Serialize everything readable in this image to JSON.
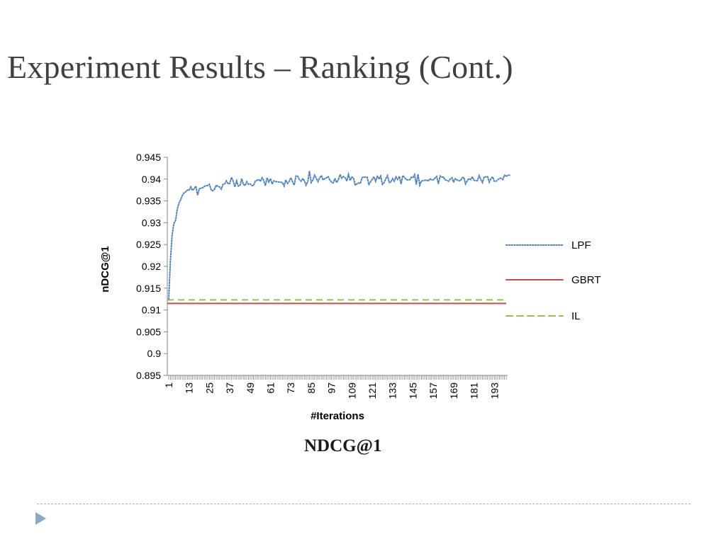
{
  "slide": {
    "title": "Experiment Results – Ranking (Cont.)"
  },
  "chart_data": {
    "type": "line",
    "title": "NDCG@1",
    "xlabel": "#Iterations",
    "ylabel": "nDCG@1",
    "ylim": [
      0.895,
      0.945
    ],
    "yticks": [
      "0.895",
      "0.9",
      "0.905",
      "0.91",
      "0.915",
      "0.92",
      "0.925",
      "0.93",
      "0.935",
      "0.94",
      "0.945"
    ],
    "xticks": [
      "1",
      "13",
      "25",
      "37",
      "49",
      "61",
      "73",
      "85",
      "97",
      "109",
      "121",
      "133",
      "145",
      "157",
      "169",
      "181",
      "193"
    ],
    "x_count": 200,
    "legend_position": "right",
    "grid": false,
    "series": [
      {
        "name": "LPF",
        "color": "#4f81bd",
        "style": "dotted",
        "values": [
          0.9125,
          0.9215,
          0.9272,
          0.9298,
          0.9305,
          0.9331,
          0.9345,
          0.9352,
          0.9362,
          0.9368,
          0.9371,
          0.9375,
          0.9374,
          0.9382,
          0.9374,
          0.9378,
          0.9384,
          0.9363,
          0.9378,
          0.9379,
          0.938,
          0.9383,
          0.9385,
          0.9385,
          0.9388,
          0.9375,
          0.9373,
          0.9377,
          0.9386,
          0.9383,
          0.9382,
          0.9377,
          0.9388,
          0.9389,
          0.9396,
          0.9389,
          0.939,
          0.9404,
          0.9395,
          0.9382,
          0.9396,
          0.9384,
          0.9385,
          0.9401,
          0.9388,
          0.9385,
          0.9394,
          0.9388,
          0.9389,
          0.9385,
          0.9385,
          0.9395,
          0.9397,
          0.9399,
          0.9395,
          0.9403,
          0.9397,
          0.9385,
          0.9403,
          0.9393,
          0.9401,
          0.9389,
          0.9396,
          0.9394,
          0.9394,
          0.9393,
          0.9393,
          0.9392,
          0.9384,
          0.9398,
          0.939,
          0.9394,
          0.9403,
          0.9394,
          0.9386,
          0.9407,
          0.9407,
          0.9399,
          0.9395,
          0.9401,
          0.9396,
          0.9386,
          0.9394,
          0.9418,
          0.9392,
          0.9398,
          0.9409,
          0.9402,
          0.9394,
          0.9403,
          0.9408,
          0.9398,
          0.9401,
          0.9403,
          0.9406,
          0.9398,
          0.9393,
          0.9391,
          0.9401,
          0.9392,
          0.9398,
          0.941,
          0.9402,
          0.9406,
          0.9403,
          0.9396,
          0.9411,
          0.9397,
          0.9405,
          0.9402,
          0.9386,
          0.9389,
          0.9391,
          0.939,
          0.9403,
          0.9405,
          0.9404,
          0.9404,
          0.9387,
          0.9394,
          0.9399,
          0.9405,
          0.9395,
          0.9407,
          0.94,
          0.9407,
          0.9388,
          0.9392,
          0.9401,
          0.9408,
          0.9392,
          0.9393,
          0.9401,
          0.9395,
          0.9405,
          0.9399,
          0.9406,
          0.9389,
          0.9408,
          0.9404,
          0.9399,
          0.9398,
          0.9398,
          0.9404,
          0.9403,
          0.941,
          0.9388,
          0.9411,
          0.9386,
          0.9396,
          0.9396,
          0.9397,
          0.9398,
          0.9395,
          0.9401,
          0.9398,
          0.9398,
          0.9402,
          0.9406,
          0.9389,
          0.9407,
          0.9404,
          0.9405,
          0.9398,
          0.9397,
          0.9395,
          0.94,
          0.9403,
          0.9393,
          0.9401,
          0.9398,
          0.9396,
          0.9396,
          0.9403,
          0.9404,
          0.9389,
          0.9396,
          0.9401,
          0.9399,
          0.9405,
          0.9397,
          0.9397,
          0.9396,
          0.9408,
          0.9399,
          0.9392,
          0.9405,
          0.9405,
          0.9406,
          0.9393,
          0.9401,
          0.9405,
          0.9395,
          0.9395,
          0.9398,
          0.9402,
          0.9402,
          0.9399,
          0.9409,
          0.9406,
          0.9409,
          0.9409
        ]
      },
      {
        "name": "GBRT",
        "color": "#c0504d",
        "style": "solid",
        "constant": 0.9115
      },
      {
        "name": "IL",
        "color": "#9bbb59",
        "style": "dashed",
        "constant": 0.9123
      }
    ]
  }
}
